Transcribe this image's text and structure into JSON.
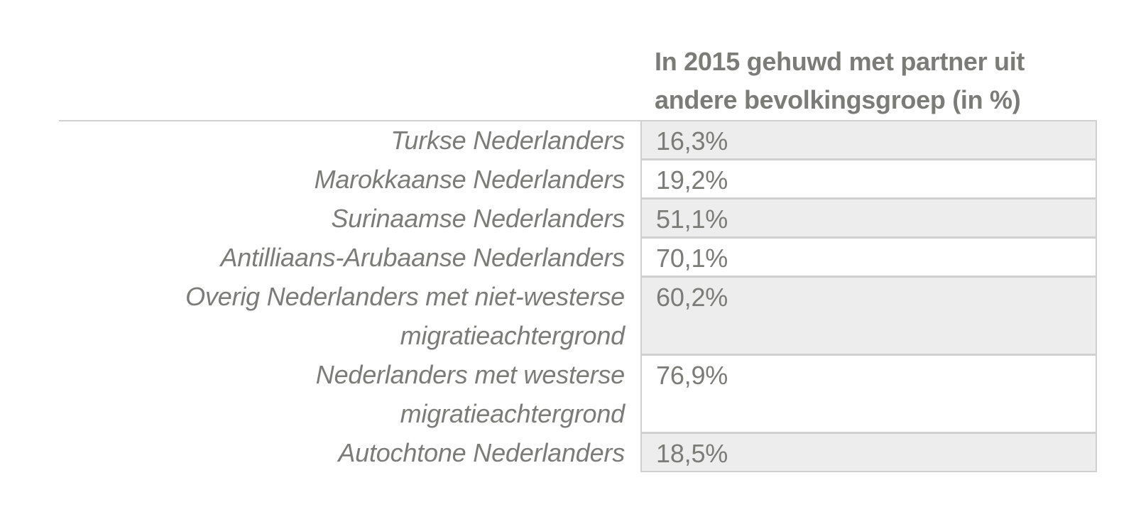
{
  "chart_data": {
    "type": "table",
    "columns": [
      "",
      "In 2015 gehuwd met partner uit andere bevolkingsgroep (in %)"
    ],
    "rows": [
      {
        "label": "Turkse Nederlanders",
        "value": "16,3%",
        "numeric": 16.3
      },
      {
        "label": "Marokkaanse Nederlanders",
        "value": "19,2%",
        "numeric": 19.2
      },
      {
        "label": "Surinaamse Nederlanders",
        "value": "51,1%",
        "numeric": 51.1
      },
      {
        "label": "Antilliaans-Arubaanse Nederlanders",
        "value": "70,1%",
        "numeric": 70.1
      },
      {
        "label": "Overig Nederlanders met niet-westerse\nmigratieachtergrond",
        "value": "60,2%",
        "numeric": 60.2
      },
      {
        "label": "Nederlanders met westerse\nmigratieachtergrond",
        "value": "76,9%",
        "numeric": 76.9
      },
      {
        "label": "Autochtone Nederlanders",
        "value": "18,5%",
        "numeric": 18.5
      }
    ],
    "colors": {
      "text": "#7b7b78",
      "shaded_row": "#ededed",
      "border": "#d0d0d0"
    }
  }
}
